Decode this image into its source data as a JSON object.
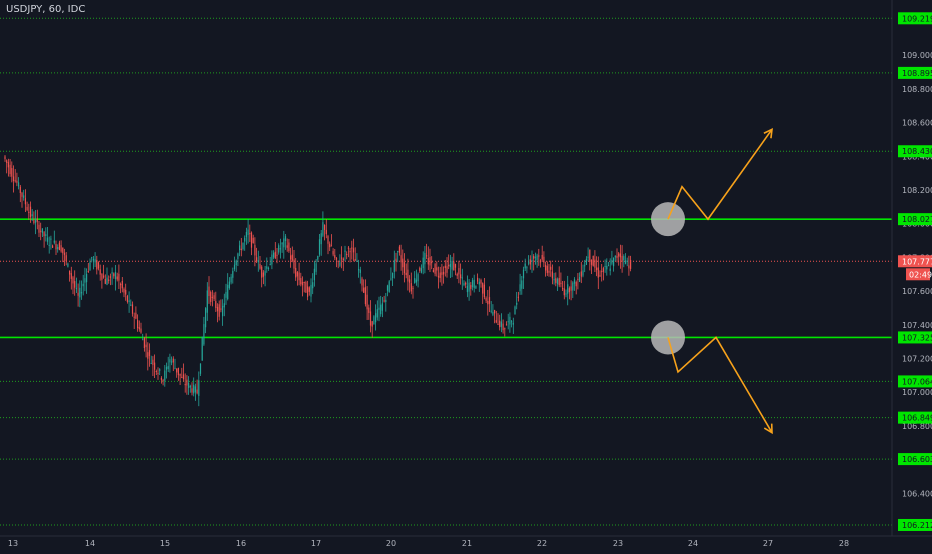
{
  "header": {
    "symbol_title": "USDJPY, 60, IDC"
  },
  "colors": {
    "background": "#131722",
    "axis_text": "#b2b5be",
    "bull": "#26a69a",
    "bear": "#ef5350",
    "strong_level": "#00e600",
    "dotted_level": "#1f9d1f",
    "level_label_bg": "#00e600",
    "price_line": "#ef5350",
    "arrow": "#f7a21b",
    "circle_fill": "#b8b8b8"
  },
  "chart_data": {
    "type": "candlestick",
    "symbol": "USDJPY",
    "interval": "60",
    "source": "IDC",
    "x_tick_labels": [
      "13",
      "14",
      "15",
      "16",
      "17",
      "20",
      "21",
      "22",
      "23",
      "24",
      "27",
      "28"
    ],
    "y_tick_labels": [
      "109.000",
      "108.800",
      "108.600",
      "108.400",
      "108.200",
      "108.000",
      "107.800",
      "107.600",
      "107.400",
      "107.200",
      "107.000",
      "106.800",
      "106.600",
      "106.400",
      "106.200"
    ],
    "y_ticks": [
      109.0,
      108.8,
      108.6,
      108.4,
      108.2,
      108.0,
      107.8,
      107.6,
      107.4,
      107.2,
      107.0,
      106.8,
      106.6,
      106.4,
      106.2
    ],
    "ylim": [
      106.2,
      109.3
    ],
    "levels": [
      {
        "value": 109.219,
        "label": "109.219",
        "style": "dotted"
      },
      {
        "value": 108.895,
        "label": "108.895",
        "style": "dotted"
      },
      {
        "value": 108.43,
        "label": "108.430",
        "style": "dotted"
      },
      {
        "value": 108.027,
        "label": "108.027",
        "style": "solid"
      },
      {
        "value": 107.325,
        "label": "107.325",
        "style": "solid"
      },
      {
        "value": 107.064,
        "label": "107.064",
        "style": "dotted"
      },
      {
        "value": 106.849,
        "label": "106.849",
        "style": "dotted"
      },
      {
        "value": 106.603,
        "label": "106.603",
        "style": "dotted"
      },
      {
        "value": 106.212,
        "label": "106.212",
        "style": "dotted"
      }
    ],
    "current_price": {
      "value": 107.777,
      "label": "107.777",
      "countdown": "02:49"
    },
    "path_points": [
      [
        0,
        108.4
      ],
      [
        8,
        108.24
      ],
      [
        16,
        108.05
      ],
      [
        26,
        107.9
      ],
      [
        34,
        107.86
      ],
      [
        44,
        107.56
      ],
      [
        52,
        107.8
      ],
      [
        60,
        107.66
      ],
      [
        66,
        107.7
      ],
      [
        78,
        107.43
      ],
      [
        86,
        107.2
      ],
      [
        94,
        107.08
      ],
      [
        98,
        107.2
      ],
      [
        106,
        107.06
      ],
      [
        114,
        107.0
      ],
      [
        120,
        107.6
      ],
      [
        128,
        107.46
      ],
      [
        136,
        107.78
      ],
      [
        144,
        107.95
      ],
      [
        152,
        107.7
      ],
      [
        160,
        107.82
      ],
      [
        166,
        107.9
      ],
      [
        172,
        107.7
      ],
      [
        180,
        107.58
      ],
      [
        188,
        107.98
      ],
      [
        196,
        107.76
      ],
      [
        204,
        107.86
      ],
      [
        210,
        107.7
      ],
      [
        216,
        107.4
      ],
      [
        224,
        107.54
      ],
      [
        232,
        107.84
      ],
      [
        240,
        107.62
      ],
      [
        248,
        107.8
      ],
      [
        256,
        107.7
      ],
      [
        264,
        107.76
      ],
      [
        272,
        107.62
      ],
      [
        280,
        107.66
      ],
      [
        288,
        107.46
      ],
      [
        294,
        107.38
      ],
      [
        300,
        107.44
      ],
      [
        306,
        107.74
      ],
      [
        314,
        107.82
      ],
      [
        322,
        107.7
      ],
      [
        330,
        107.6
      ],
      [
        338,
        107.66
      ],
      [
        344,
        107.82
      ],
      [
        350,
        107.7
      ],
      [
        356,
        107.74
      ],
      [
        362,
        107.82
      ],
      [
        368,
        107.76
      ]
    ],
    "annotations": [
      {
        "type": "circle",
        "price": 108.027,
        "label": ""
      },
      {
        "type": "circle",
        "price": 107.325,
        "label": ""
      },
      {
        "type": "arrow-path",
        "direction": "up",
        "points": [
          [
            0,
            108.027
          ],
          [
            14,
            108.22
          ],
          [
            40,
            108.027
          ],
          [
            104,
            108.56
          ]
        ]
      },
      {
        "type": "arrow-path",
        "direction": "down",
        "points": [
          [
            0,
            107.325
          ],
          [
            10,
            107.12
          ],
          [
            48,
            107.325
          ],
          [
            104,
            106.76
          ]
        ]
      }
    ]
  }
}
